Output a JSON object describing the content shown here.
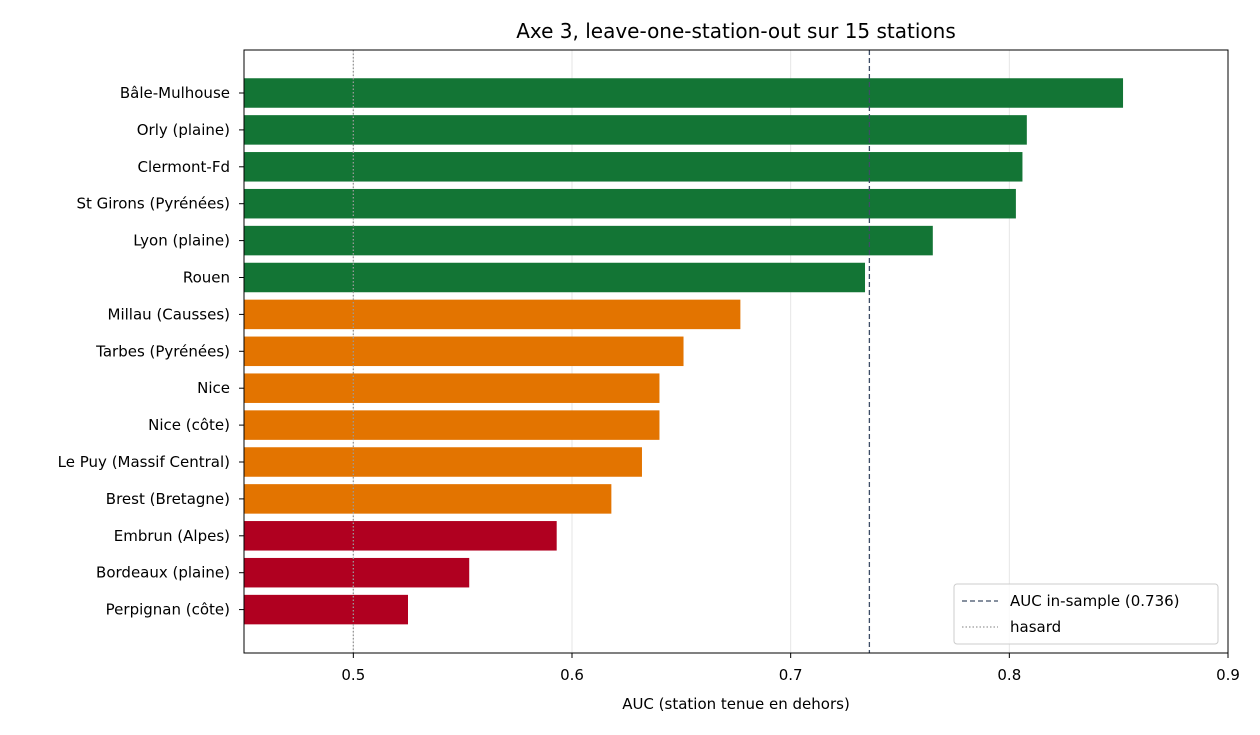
{
  "chart_data": {
    "type": "bar",
    "orientation": "horizontal",
    "title": "Axe 3, leave-one-station-out sur 15 stations",
    "xlabel": "AUC (station tenue en dehors)",
    "ylabel": "",
    "xlim": [
      0.45,
      0.9
    ],
    "xticks": [
      0.5,
      0.6,
      0.7,
      0.8,
      0.9
    ],
    "xtick_labels": [
      "0.5",
      "0.6",
      "0.7",
      "0.8",
      "0.9"
    ],
    "grid": "vertical",
    "categories": [
      "Bâle-Mulhouse",
      "Orly (plaine)",
      "Clermont-Fd",
      "St Girons (Pyrénées)",
      "Lyon (plaine)",
      "Rouen",
      "Millau (Causses)",
      "Tarbes (Pyrénées)",
      "Nice",
      "Nice (côte)",
      "Le Puy (Massif Central)",
      "Brest (Bretagne)",
      "Embrun (Alpes)",
      "Bordeaux (plaine)",
      "Perpignan (côte)"
    ],
    "values": [
      0.852,
      0.808,
      0.806,
      0.803,
      0.765,
      0.734,
      0.677,
      0.651,
      0.64,
      0.64,
      0.632,
      0.618,
      0.593,
      0.553,
      0.525
    ],
    "bar_colors": [
      "#137535",
      "#137535",
      "#137535",
      "#137535",
      "#137535",
      "#137535",
      "#e37400",
      "#e37400",
      "#e37400",
      "#e37400",
      "#e37400",
      "#e37400",
      "#b00020",
      "#b00020",
      "#b00020"
    ],
    "reference_lines": [
      {
        "label": "AUC in-sample (0.736)",
        "value": 0.736,
        "style": "dashed",
        "color": "#3d4d66"
      },
      {
        "label": "hasard",
        "value": 0.5,
        "style": "dotted",
        "color": "#999999"
      }
    ],
    "legend_position": "bottom-right"
  }
}
